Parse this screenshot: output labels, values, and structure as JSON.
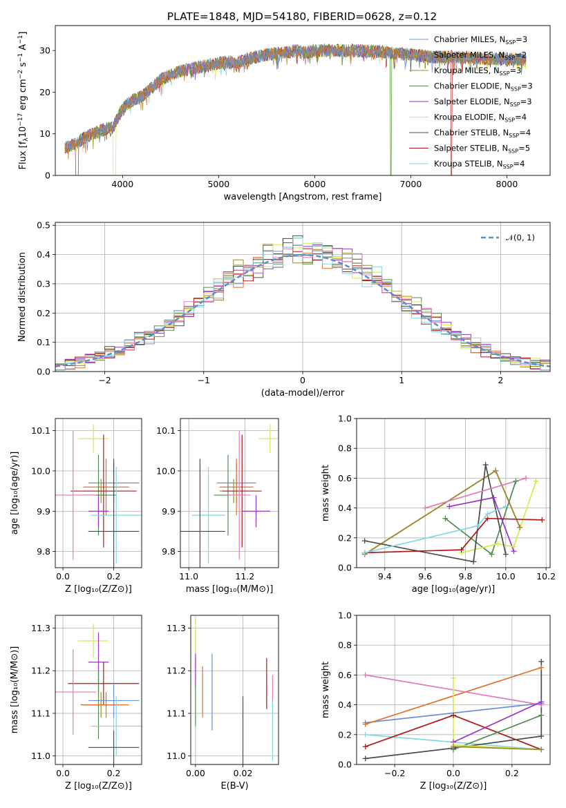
{
  "figure": {
    "title": "PLATE=1848, MJD=54180, FIBERID=0628, z=0.12"
  },
  "colors": {
    "Chabrier MILES": "#6b8fd6",
    "Salpeter MILES": "#e0702a",
    "Kroupa MILES": "#9a8c2a",
    "Chabrier ELODIE": "#4f8a4f",
    "Salpeter ELODIE": "#9a32c2",
    "Kroupa ELODIE": "#d8e84a",
    "Chabrier STELIB": "#4a4a4a",
    "Salpeter STELIB": "#b01818",
    "Kroupa STELIB": "#82d6df",
    "pink": "#e07bb8",
    "normal_curve": "#5b8bd6"
  },
  "chart_data": [
    {
      "id": "spectrum",
      "type": "line",
      "xlabel": "wavelength [Angstrom, rest frame]",
      "ylabel_parts": [
        "Flux [f",
        "λ",
        "10",
        "−17",
        " erg cm",
        "−2",
        " s",
        "−1",
        " A",
        "−1",
        "]"
      ],
      "xlim": [
        3300,
        8450
      ],
      "ylim": [
        0,
        36
      ],
      "xticks": [
        4000,
        5000,
        6000,
        7000,
        8000
      ],
      "yticks": [
        0,
        10,
        20,
        30
      ],
      "grid": false,
      "legend_position": "top-right",
      "legend": [
        {
          "model": "Chabrier MILES",
          "n": "3"
        },
        {
          "model": "Salpeter MILES",
          "n": "2"
        },
        {
          "model": "Kroupa MILES",
          "n": "3"
        },
        {
          "model": "Chabrier ELODIE",
          "n": "3"
        },
        {
          "model": "Salpeter ELODIE",
          "n": "3"
        },
        {
          "model": "Kroupa ELODIE",
          "n": "4"
        },
        {
          "model": "Chabrier STELIB",
          "n": "4"
        },
        {
          "model": "Salpeter STELIB",
          "n": "5"
        },
        {
          "model": "Kroupa STELIB",
          "n": "4"
        }
      ],
      "continuum": [
        [
          3400,
          6.5
        ],
        [
          3500,
          7.5
        ],
        [
          3600,
          9
        ],
        [
          3700,
          10
        ],
        [
          3800,
          11
        ],
        [
          3900,
          11.5
        ],
        [
          4000,
          16
        ],
        [
          4100,
          18
        ],
        [
          4200,
          19
        ],
        [
          4300,
          21
        ],
        [
          4400,
          23
        ],
        [
          4500,
          24
        ],
        [
          4600,
          25
        ],
        [
          4700,
          25.5
        ],
        [
          4800,
          26
        ],
        [
          4900,
          26.5
        ],
        [
          5000,
          27
        ],
        [
          5100,
          27.3
        ],
        [
          5200,
          27
        ],
        [
          5300,
          28
        ],
        [
          5400,
          28.5
        ],
        [
          5500,
          29
        ],
        [
          5600,
          29.3
        ],
        [
          5700,
          29.5
        ],
        [
          5800,
          30
        ],
        [
          5900,
          29.5
        ],
        [
          6000,
          30
        ],
        [
          6200,
          30
        ],
        [
          6400,
          30
        ],
        [
          6600,
          29.8
        ],
        [
          6800,
          29.5
        ],
        [
          7000,
          29
        ],
        [
          7200,
          28.5
        ],
        [
          7400,
          28.5
        ],
        [
          7600,
          28.3
        ],
        [
          7800,
          28
        ],
        [
          8000,
          28
        ],
        [
          8200,
          27.8
        ]
      ],
      "drops": [
        {
          "model": "Salpeter STELIB",
          "from": 3510,
          "to": 3540
        },
        {
          "model": "Kroupa ELODIE",
          "from": 3900,
          "to": 3930
        },
        {
          "model": "Kroupa ELODIE",
          "from": 6790,
          "to": 6800
        },
        {
          "model": "Chabrier ELODIE",
          "from": 6790,
          "to": 6800
        },
        {
          "model": "Salpeter STELIB",
          "from": 7420,
          "to": 7430
        }
      ]
    },
    {
      "id": "residuals",
      "type": "bar",
      "xlabel": "(data-model)/error",
      "ylabel": "Normed distribution",
      "xlim": [
        -2.5,
        2.5
      ],
      "ylim": [
        0,
        0.51
      ],
      "xticks": [
        -2,
        -1,
        0,
        1,
        2
      ],
      "yticks": [
        0.0,
        0.1,
        0.2,
        0.3,
        0.4,
        0.5
      ],
      "grid": true,
      "bin_width": 0.1,
      "reference_curve": {
        "label": "𝒩(0, 1)",
        "mean": 0,
        "sigma": 1
      },
      "legend_position": "top-right",
      "histograms": "ten step histograms, one per model, closely following the N(0,1) curve with peak bins near 0.43–0.49"
    },
    {
      "id": "age_vs_Z",
      "type": "scatter",
      "xlabel": "Z [log₁₀(Z/Z⊙)]",
      "ylabel": "age  [log₁₀(age/yr)]",
      "xlim": [
        -0.03,
        0.31
      ],
      "ylim": [
        9.76,
        10.13
      ],
      "xticks": [
        0.0,
        0.2
      ],
      "yticks": [
        9.8,
        9.9,
        10.0,
        10.1
      ],
      "grid": true,
      "points": [
        {
          "model": "Kroupa ELODIE",
          "x": 0.12,
          "xerr": 0.06,
          "y": 10.08,
          "yerr": 0.035
        },
        {
          "model": "Chabrier MILES",
          "x": 0.2,
          "xerr": 0.1,
          "y": 9.97,
          "yerr": 0.05
        },
        {
          "model": "Salpeter MILES",
          "x": 0.17,
          "xerr": 0.09,
          "y": 9.96,
          "yerr": 0.07
        },
        {
          "model": "Kroupa MILES",
          "x": 0.15,
          "xerr": 0.07,
          "y": 9.95,
          "yerr": 0.03
        },
        {
          "model": "Chabrier ELODIE",
          "x": 0.14,
          "xerr": 0.07,
          "y": 9.94,
          "yerr": 0.1
        },
        {
          "model": "Salpeter STELIB",
          "x": 0.16,
          "xerr": 0.13,
          "y": 9.95,
          "yerr": 0.14
        },
        {
          "model": "pink",
          "x": 0.04,
          "xerr": 0.09,
          "y": 9.94,
          "yerr": 0.16
        },
        {
          "model": "Salpeter ELODIE",
          "x": 0.14,
          "xerr": 0.04,
          "y": 9.9,
          "yerr": 0.04
        },
        {
          "model": "Kroupa STELIB",
          "x": 0.21,
          "xerr": 0.1,
          "y": 9.89,
          "yerr": 0.12
        },
        {
          "model": "Chabrier STELIB",
          "x": 0.2,
          "xerr": 0.1,
          "y": 9.85,
          "yerr": 0.18
        }
      ]
    },
    {
      "id": "age_vs_mass",
      "type": "scatter",
      "xlabel": "mass [log₁₀(M/M⊙)]",
      "ylabel": "",
      "xlim": [
        10.97,
        11.32
      ],
      "ylim": [
        9.76,
        10.13
      ],
      "xticks": [
        11.0,
        11.2
      ],
      "yticks": [
        9.8,
        9.9,
        10.0,
        10.1
      ],
      "grid": true,
      "points": [
        {
          "model": "Kroupa ELODIE",
          "x": 11.29,
          "xerr": 0.04,
          "y": 10.08,
          "yerr": 0.035
        },
        {
          "model": "Chabrier MILES",
          "x": 11.17,
          "xerr": 0.07,
          "y": 9.97,
          "yerr": 0.05
        },
        {
          "model": "Salpeter MILES",
          "x": 11.17,
          "xerr": 0.06,
          "y": 9.96,
          "yerr": 0.07
        },
        {
          "model": "Kroupa MILES",
          "x": 11.16,
          "xerr": 0.05,
          "y": 9.95,
          "yerr": 0.03
        },
        {
          "model": "Chabrier ELODIE",
          "x": 11.14,
          "xerr": 0.05,
          "y": 9.94,
          "yerr": 0.1
        },
        {
          "model": "Salpeter STELIB",
          "x": 11.19,
          "xerr": 0.07,
          "y": 9.95,
          "yerr": 0.14
        },
        {
          "model": "pink",
          "x": 11.18,
          "xerr": 0.04,
          "y": 9.94,
          "yerr": 0.16
        },
        {
          "model": "Salpeter ELODIE",
          "x": 11.24,
          "xerr": 0.05,
          "y": 9.9,
          "yerr": 0.04
        },
        {
          "model": "Kroupa STELIB",
          "x": 11.07,
          "xerr": 0.06,
          "y": 9.89,
          "yerr": 0.12
        },
        {
          "model": "Chabrier STELIB",
          "x": 11.04,
          "xerr": 0.09,
          "y": 9.85,
          "yerr": 0.18
        }
      ]
    },
    {
      "id": "massweight_vs_age",
      "type": "line",
      "xlabel": "age  [log₁₀(age/yr)]",
      "ylabel": "mass weight",
      "xlim": [
        9.26,
        10.22
      ],
      "ylim": [
        0.0,
        1.0
      ],
      "xticks": [
        9.4,
        9.6,
        9.8,
        10.0,
        10.2
      ],
      "yticks": [
        0.0,
        0.2,
        0.4,
        0.6,
        0.8,
        1.0
      ],
      "grid": true,
      "series": [
        {
          "model": "Chabrier MILES",
          "x": [
            9.3,
            9.95,
            10.07
          ],
          "y": [
            0.09,
            0.65,
            0.27
          ]
        },
        {
          "model": "Salpeter MILES",
          "x": [
            9.3,
            9.95,
            10.07
          ],
          "y": [
            0.09,
            0.65,
            0.27
          ]
        },
        {
          "model": "Kroupa MILES",
          "x": [
            9.3,
            9.95,
            10.07
          ],
          "y": [
            0.09,
            0.65,
            0.27
          ]
        },
        {
          "model": "Chabrier ELODIE",
          "x": [
            9.7,
            9.93,
            10.05
          ],
          "y": [
            0.33,
            0.09,
            0.58
          ]
        },
        {
          "model": "Salpeter ELODIE",
          "x": [
            9.72,
            9.94,
            10.04
          ],
          "y": [
            0.41,
            0.47,
            0.11
          ]
        },
        {
          "model": "Kroupa ELODIE",
          "x": [
            9.78,
            9.96,
            10.04,
            10.15
          ],
          "y": [
            0.1,
            0.16,
            0.14,
            0.58
          ]
        },
        {
          "model": "Chabrier STELIB",
          "x": [
            9.3,
            9.84,
            9.9,
            10.0
          ],
          "y": [
            0.18,
            0.04,
            0.69,
            0.09
          ]
        },
        {
          "model": "Salpeter STELIB",
          "x": [
            9.3,
            9.78,
            9.91,
            10.18
          ],
          "y": [
            0.1,
            0.12,
            0.33,
            0.32
          ]
        },
        {
          "model": "Kroupa STELIB",
          "x": [
            9.3,
            9.86,
            9.91,
            10.0
          ],
          "y": [
            0.1,
            0.28,
            0.36,
            0.41
          ]
        },
        {
          "model": "pink",
          "x": [
            9.6,
            10.1
          ],
          "y": [
            0.4,
            0.6
          ]
        }
      ]
    },
    {
      "id": "mass_vs_Z",
      "type": "scatter",
      "xlabel": "Z [log₁₀(Z/Z⊙)]",
      "ylabel": "mass [log₁₀(M/M⊙)]",
      "xlim": [
        -0.03,
        0.31
      ],
      "ylim": [
        10.98,
        11.33
      ],
      "xticks": [
        0.0,
        0.2
      ],
      "yticks": [
        11.0,
        11.1,
        11.2,
        11.3
      ],
      "grid": true,
      "points": [
        {
          "model": "Kroupa ELODIE",
          "x": 0.12,
          "xerr": 0.06,
          "y": 11.27,
          "yerr": 0.04
        },
        {
          "model": "Salpeter ELODIE",
          "x": 0.14,
          "xerr": 0.04,
          "y": 11.22,
          "yerr": 0.07
        },
        {
          "model": "Salpeter STELIB",
          "x": 0.16,
          "xerr": 0.14,
          "y": 11.17,
          "yerr": 0.05
        },
        {
          "model": "pink",
          "x": 0.04,
          "xerr": 0.09,
          "y": 11.15,
          "yerr": 0.1
        },
        {
          "model": "Chabrier MILES",
          "x": 0.2,
          "xerr": 0.1,
          "y": 11.13,
          "yerr": 0.04
        },
        {
          "model": "Kroupa MILES",
          "x": 0.15,
          "xerr": 0.07,
          "y": 11.12,
          "yerr": 0.03
        },
        {
          "model": "Chabrier ELODIE",
          "x": 0.14,
          "xerr": 0.07,
          "y": 11.12,
          "yerr": 0.08
        },
        {
          "model": "Salpeter MILES",
          "x": 0.17,
          "xerr": 0.09,
          "y": 11.12,
          "yerr": 0.03
        },
        {
          "model": "Kroupa STELIB",
          "x": 0.21,
          "xerr": 0.1,
          "y": 11.07,
          "yerr": 0.07
        },
        {
          "model": "Chabrier STELIB",
          "x": 0.2,
          "xerr": 0.1,
          "y": 11.02,
          "yerr": 0.04
        }
      ]
    },
    {
      "id": "ebv_errors",
      "type": "scatter",
      "xlabel": "E(B-V)",
      "ylabel": "",
      "xlim": [
        -0.002,
        0.035
      ],
      "ylim": [
        10.98,
        11.33
      ],
      "xticks": [
        0.0,
        0.02
      ],
      "yticks": [
        11.0,
        11.1,
        11.2,
        11.3
      ],
      "grid": true,
      "points": [
        {
          "model": "Kroupa ELODIE",
          "x": 0.0,
          "y": 11.28,
          "yerr": 0.04
        },
        {
          "model": "Salpeter ELODIE",
          "x": 0.0,
          "y": 11.2,
          "yerr": 0.04
        },
        {
          "model": "Chabrier ELODIE",
          "x": 0.0,
          "y": 11.12,
          "yerr": 0.05
        },
        {
          "model": "Salpeter MILES",
          "x": 0.003,
          "y": 11.15,
          "yerr": 0.06
        },
        {
          "model": "Chabrier MILES",
          "x": 0.007,
          "y": 11.15,
          "yerr": 0.09
        },
        {
          "model": "Chabrier STELIB",
          "x": 0.02,
          "y": 11.03,
          "yerr": 0.11
        },
        {
          "model": "Salpeter STELIB",
          "x": 0.03,
          "y": 11.17,
          "yerr": 0.06
        },
        {
          "model": "pink",
          "x": 0.0325,
          "y": 11.15,
          "yerr": 0.04
        },
        {
          "model": "Kroupa STELIB",
          "x": 0.0325,
          "y": 11.06,
          "yerr": 0.07
        }
      ]
    },
    {
      "id": "massweight_vs_Z",
      "type": "line",
      "xlabel": "Z [log₁₀(Z/Z⊙)]",
      "ylabel": "mass weight",
      "xlim": [
        -0.33,
        0.33
      ],
      "ylim": [
        0.0,
        1.0
      ],
      "xticks": [
        -0.2,
        0.0,
        0.2
      ],
      "yticks": [
        0.0,
        0.2,
        0.4,
        0.6,
        0.8,
        1.0
      ],
      "grid": true,
      "series": [
        {
          "model": "Chabrier MILES",
          "x": [
            -0.3,
            0.3
          ],
          "y": [
            0.28,
            0.41
          ]
        },
        {
          "model": "Salpeter MILES",
          "x": [
            -0.3,
            0.3
          ],
          "y": [
            0.27,
            0.65
          ]
        },
        {
          "model": "pink",
          "x": [
            -0.3,
            0.3
          ],
          "y": [
            0.6,
            0.4
          ]
        },
        {
          "model": "Kroupa STELIB",
          "x": [
            -0.3,
            0.3
          ],
          "y": [
            0.2,
            0.1
          ]
        },
        {
          "model": "Salpeter STELIB",
          "x": [
            -0.3,
            0.0,
            0.3
          ],
          "y": [
            0.12,
            0.33,
            0.1
          ]
        },
        {
          "model": "Chabrier STELIB",
          "x": [
            -0.3,
            0.0,
            0.3,
            0.3
          ],
          "y": [
            0.04,
            0.11,
            0.19,
            0.69
          ]
        },
        {
          "model": "Chabrier ELODIE",
          "x": [
            0.0,
            0.3
          ],
          "y": [
            0.1,
            0.33
          ]
        },
        {
          "model": "Salpeter ELODIE",
          "x": [
            0.0,
            0.3
          ],
          "y": [
            0.15,
            0.42
          ]
        },
        {
          "model": "Kroupa ELODIE",
          "x": [
            0.0,
            0.0,
            0.3
          ],
          "y": [
            0.58,
            0.13,
            0.1
          ]
        },
        {
          "model": "Kroupa MILES",
          "x": [
            0.0,
            0.3
          ],
          "y": [
            0.12,
            0.1
          ]
        }
      ]
    }
  ]
}
